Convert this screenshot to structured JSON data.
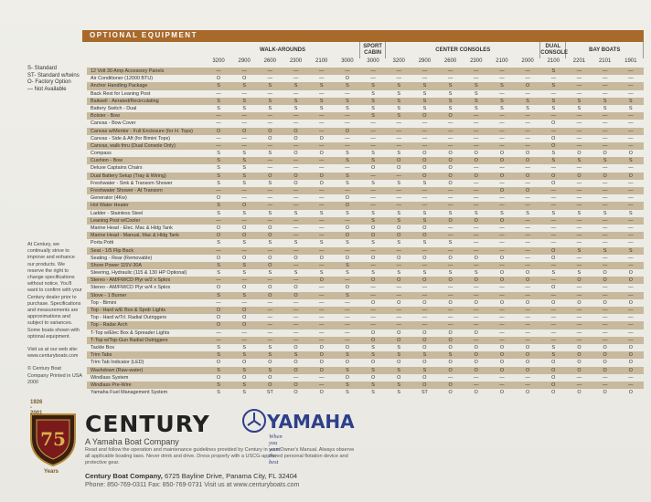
{
  "section_title": "OPTIONAL EQUIPMENT",
  "groups": [
    {
      "label": "WALK-AROUNDS",
      "span": 6
    },
    {
      "label": "SPORT CABIN",
      "span": 1
    },
    {
      "label": "CENTER CONSOLES",
      "span": 6
    },
    {
      "label": "DUAL CONSOLE",
      "span": 1
    },
    {
      "label": "BAY BOATS",
      "span": 3
    }
  ],
  "models": [
    "3200",
    "2900",
    "2600",
    "2300",
    "2100",
    "3000",
    "3000",
    "3200",
    "2900",
    "2600",
    "2300",
    "2100",
    "2000",
    "2100",
    "2201",
    "2101",
    "1901"
  ],
  "legend": [
    "S- Standard",
    "ST- Standard w/twins",
    "O- Factory Option",
    "— Not Available"
  ],
  "rows": [
    {
      "label": "12 Volt 30 Amp Accessory Panels",
      "v": [
        "—",
        "—",
        "—",
        "—",
        "—",
        "—",
        "—",
        "—",
        "—",
        "—",
        "—",
        "—",
        "—",
        "S",
        "—",
        "—",
        "—"
      ]
    },
    {
      "label": "Air Conditioner (12000 BTU)",
      "v": [
        "O",
        "O",
        "—",
        "—",
        "—",
        "O",
        "—",
        "—",
        "—",
        "—",
        "—",
        "—",
        "—",
        "—",
        "—",
        "—",
        "—"
      ]
    },
    {
      "label": "Anchor Handling Package",
      "v": [
        "S",
        "S",
        "S",
        "S",
        "S",
        "S",
        "S",
        "S",
        "S",
        "S",
        "S",
        "S",
        "O",
        "S",
        "—",
        "—",
        "—"
      ]
    },
    {
      "label": "Back Rest for Leaning Post",
      "v": [
        "—",
        "—",
        "—",
        "—",
        "—",
        "—",
        "S",
        "S",
        "S",
        "S",
        "S",
        "—",
        "—",
        "—",
        "—",
        "—",
        "—"
      ]
    },
    {
      "label": "Baitwell - Aerated/Recirculating",
      "v": [
        "S",
        "S",
        "S",
        "S",
        "S",
        "S",
        "S",
        "S",
        "S",
        "S",
        "S",
        "S",
        "S",
        "S",
        "S",
        "S",
        "S"
      ]
    },
    {
      "label": "Battery Switch - Dual",
      "v": [
        "S",
        "S",
        "S",
        "S",
        "S",
        "S",
        "S",
        "S",
        "S",
        "S",
        "S",
        "S",
        "S",
        "S",
        "S",
        "S",
        "S"
      ]
    },
    {
      "label": "Bolster - Bow",
      "v": [
        "—",
        "—",
        "—",
        "—",
        "—",
        "—",
        "S",
        "S",
        "O",
        "O",
        "—",
        "—",
        "—",
        "—",
        "—",
        "—",
        "—"
      ]
    },
    {
      "label": "Canvas - Bow Cover",
      "v": [
        "—",
        "—",
        "—",
        "—",
        "—",
        "—",
        "—",
        "—",
        "—",
        "—",
        "—",
        "—",
        "—",
        "O",
        "—",
        "—",
        "—"
      ]
    },
    {
      "label": "Canvas w/Mentor - Full Enclosure (for H. Tops)",
      "v": [
        "O",
        "O",
        "O",
        "O",
        "—",
        "O",
        "—",
        "—",
        "—",
        "—",
        "—",
        "—",
        "—",
        "—",
        "—",
        "—",
        "—"
      ]
    },
    {
      "label": "Canvas - Side & Aft (for Bimini Tops)",
      "v": [
        "—",
        "—",
        "O",
        "O",
        "O",
        "—",
        "—",
        "—",
        "—",
        "—",
        "—",
        "—",
        "—",
        "O",
        "—",
        "—",
        "—"
      ]
    },
    {
      "label": "Canvas, walk thru (Dual Console Only)",
      "v": [
        "—",
        "—",
        "—",
        "—",
        "—",
        "—",
        "—",
        "—",
        "—",
        "—",
        "—",
        "—",
        "—",
        "O",
        "—",
        "—",
        "—"
      ]
    },
    {
      "label": "Compass",
      "v": [
        "S",
        "S",
        "S",
        "O",
        "O",
        "S",
        "S",
        "S",
        "O",
        "O",
        "O",
        "O",
        "O",
        "S",
        "O",
        "O",
        "O"
      ]
    },
    {
      "label": "Cushion - Bow",
      "v": [
        "S",
        "S",
        "—",
        "—",
        "—",
        "S",
        "S",
        "O",
        "O",
        "O",
        "O",
        "O",
        "O",
        "S",
        "S",
        "S",
        "S"
      ]
    },
    {
      "label": "Deluxe Captains Chairs",
      "v": [
        "S",
        "S",
        "—",
        "—",
        "—",
        "—",
        "O",
        "O",
        "O",
        "O",
        "—",
        "—",
        "—",
        "—",
        "—",
        "—",
        "—"
      ]
    },
    {
      "label": "Dual Battery Setup (Tray & Wiring)",
      "v": [
        "S",
        "S",
        "O",
        "O",
        "O",
        "S",
        "—",
        "—",
        "O",
        "O",
        "O",
        "O",
        "O",
        "O",
        "O",
        "O",
        "O"
      ]
    },
    {
      "label": "Freshwater - Sink & Transom Shower",
      "v": [
        "S",
        "S",
        "S",
        "O",
        "O",
        "S",
        "S",
        "S",
        "S",
        "O",
        "—",
        "—",
        "—",
        "O",
        "—",
        "—",
        "—"
      ]
    },
    {
      "label": "Freshwater Shower - At Transom",
      "v": [
        "—",
        "—",
        "—",
        "—",
        "—",
        "—",
        "—",
        "—",
        "—",
        "—",
        "—",
        "O",
        "O",
        "—",
        "—",
        "—",
        "—"
      ]
    },
    {
      "label": "Generator (4Kw)",
      "v": [
        "O",
        "—",
        "—",
        "—",
        "—",
        "O",
        "—",
        "—",
        "—",
        "—",
        "—",
        "—",
        "—",
        "—",
        "—",
        "—",
        "—"
      ]
    },
    {
      "label": "Hot Water Heater",
      "v": [
        "S",
        "O",
        "—",
        "—",
        "—",
        "O",
        "—",
        "—",
        "—",
        "—",
        "—",
        "—",
        "—",
        "—",
        "—",
        "—",
        "—"
      ]
    },
    {
      "label": "Ladder - Stainless Steel",
      "v": [
        "S",
        "S",
        "S",
        "S",
        "S",
        "S",
        "S",
        "S",
        "S",
        "S",
        "S",
        "S",
        "S",
        "S",
        "S",
        "S",
        "S"
      ]
    },
    {
      "label": "Leaning Post w/Cooler",
      "v": [
        "—",
        "—",
        "—",
        "—",
        "—",
        "—",
        "S",
        "S",
        "S",
        "O",
        "O",
        "O",
        "—",
        "—",
        "—",
        "—",
        "—"
      ]
    },
    {
      "label": "Marine Head - Elec. Mac & Hldg Tank",
      "v": [
        "O",
        "O",
        "O",
        "—",
        "—",
        "O",
        "O",
        "O",
        "O",
        "—",
        "—",
        "—",
        "—",
        "—",
        "—",
        "—",
        "—"
      ]
    },
    {
      "label": "Marine Head - Manual, Mac & Hldg Tank",
      "v": [
        "O",
        "O",
        "O",
        "—",
        "—",
        "O",
        "O",
        "O",
        "O",
        "—",
        "—",
        "—",
        "—",
        "—",
        "—",
        "—",
        "—"
      ]
    },
    {
      "label": "Porta Potti",
      "v": [
        "S",
        "S",
        "S",
        "S",
        "S",
        "S",
        "S",
        "S",
        "S",
        "S",
        "—",
        "—",
        "—",
        "—",
        "—",
        "—",
        "—"
      ]
    },
    {
      "label": "Seat - 1/5 Flip Back",
      "v": [
        "—",
        "—",
        "—",
        "—",
        "—",
        "—",
        "—",
        "—",
        "—",
        "—",
        "—",
        "—",
        "—",
        "O",
        "S",
        "S",
        "S"
      ]
    },
    {
      "label": "Seating - Rear (Removable)",
      "v": [
        "O",
        "O",
        "O",
        "O",
        "O",
        "O",
        "O",
        "O",
        "O",
        "O",
        "O",
        "O",
        "—",
        "O",
        "—",
        "—",
        "—"
      ]
    },
    {
      "label": "Shore Power 115V-30A",
      "v": [
        "S",
        "S",
        "O",
        "—",
        "—",
        "S",
        "—",
        "—",
        "—",
        "—",
        "—",
        "—",
        "—",
        "—",
        "—",
        "—",
        "—"
      ]
    },
    {
      "label": "Steering, Hydraulic (115 & 130 HP Optional)",
      "v": [
        "S",
        "S",
        "S",
        "S",
        "S",
        "S",
        "S",
        "S",
        "S",
        "S",
        "S",
        "O",
        "O",
        "S",
        "S",
        "O",
        "O"
      ]
    },
    {
      "label": "Stereo - AM/FM/CD Plyr w/2 x Spkrs",
      "v": [
        "—",
        "—",
        "—",
        "—",
        "O",
        "—",
        "O",
        "O",
        "O",
        "O",
        "O",
        "O",
        "O",
        "—",
        "O",
        "O",
        "O"
      ]
    },
    {
      "label": "Stereo - AM/FM/CD Plyr w/4 x Spkrs",
      "v": [
        "O",
        "O",
        "O",
        "O",
        "—",
        "O",
        "—",
        "—",
        "—",
        "—",
        "—",
        "—",
        "—",
        "O",
        "—",
        "—",
        "—"
      ]
    },
    {
      "label": "Stove - 1 Burner",
      "v": [
        "S",
        "S",
        "O",
        "O",
        "—",
        "S",
        "—",
        "—",
        "—",
        "—",
        "—",
        "—",
        "—",
        "—",
        "—",
        "—",
        "—"
      ]
    },
    {
      "label": "Top - Bimini",
      "v": [
        "—",
        "—",
        "—",
        "—",
        "—",
        "—",
        "O",
        "O",
        "O",
        "O",
        "O",
        "O",
        "O",
        "O",
        "O",
        "O",
        "O"
      ]
    },
    {
      "label": "Top - Hard w/E Box & Sprdr Lights",
      "v": [
        "O",
        "O",
        "—",
        "—",
        "—",
        "—",
        "—",
        "—",
        "—",
        "—",
        "—",
        "—",
        "—",
        "—",
        "—",
        "—",
        "—"
      ]
    },
    {
      "label": "Top - Hard w/Trl. Radial Outriggers",
      "v": [
        "O",
        "O",
        "—",
        "—",
        "—",
        "—",
        "—",
        "—",
        "—",
        "—",
        "—",
        "—",
        "—",
        "—",
        "—",
        "—",
        "—"
      ]
    },
    {
      "label": "Top - Radar Arch",
      "v": [
        "O",
        "O",
        "—",
        "—",
        "—",
        "—",
        "—",
        "—",
        "—",
        "—",
        "—",
        "—",
        "—",
        "—",
        "—",
        "—",
        "—"
      ]
    },
    {
      "label": "T-Top w/Elec Box & Spreader Lights",
      "v": [
        "—",
        "—",
        "—",
        "—",
        "—",
        "—",
        "O",
        "O",
        "O",
        "O",
        "O",
        "—",
        "—",
        "—",
        "—",
        "—",
        "—"
      ]
    },
    {
      "label": "T-Top w/Top-Gun Radial Outriggers",
      "v": [
        "—",
        "—",
        "—",
        "—",
        "—",
        "—",
        "O",
        "O",
        "O",
        "O",
        "—",
        "—",
        "—",
        "—",
        "—",
        "—",
        "—"
      ]
    },
    {
      "label": "Tackle Box",
      "v": [
        "S",
        "S",
        "S",
        "O",
        "O",
        "O",
        "S",
        "S",
        "O",
        "O",
        "O",
        "O",
        "O",
        "S",
        "O",
        "O",
        "O"
      ]
    },
    {
      "label": "Trim Tabs",
      "v": [
        "S",
        "S",
        "S",
        "S",
        "O",
        "S",
        "S",
        "S",
        "S",
        "S",
        "O",
        "O",
        "O",
        "S",
        "O",
        "O",
        "O"
      ]
    },
    {
      "label": "Trim Tab Indicator (LED)",
      "v": [
        "O",
        "O",
        "O",
        "O",
        "O",
        "O",
        "O",
        "O",
        "O",
        "O",
        "O",
        "O",
        "O",
        "O",
        "O",
        "O",
        "O"
      ]
    },
    {
      "label": "Washdown (Raw-water)",
      "v": [
        "S",
        "S",
        "S",
        "O",
        "O",
        "S",
        "S",
        "S",
        "S",
        "O",
        "O",
        "O",
        "O",
        "O",
        "O",
        "O",
        "O"
      ]
    },
    {
      "label": "Windlass System",
      "v": [
        "O",
        "O",
        "O",
        "—",
        "—",
        "O",
        "O",
        "O",
        "O",
        "—",
        "—",
        "—",
        "—",
        "O",
        "—",
        "—",
        "—"
      ]
    },
    {
      "label": "Windlass Pre-Wire",
      "v": [
        "S",
        "S",
        "O",
        "O",
        "—",
        "S",
        "S",
        "S",
        "O",
        "O",
        "—",
        "—",
        "—",
        "O",
        "—",
        "—",
        "—"
      ]
    },
    {
      "label": "Yamaha Fuel Management System",
      "v": [
        "S",
        "S",
        "ST",
        "O",
        "O",
        "S",
        "S",
        "S",
        "ST",
        "O",
        "O",
        "O",
        "O",
        "O",
        "O",
        "O",
        "O"
      ]
    }
  ],
  "sidenote": [
    "At Century, we continually strive to improve and enhance our products. We reserve the right to change specifications without notice. You'll want to confirm with your Century dealer prior to purchase. Specifications and measurements are approximations and subject to variances. Some boats shown with optional equipment.",
    "Visit us at our web site: www.centuryboats.com",
    "© Century Boat Company Printed in USA 2000"
  ],
  "brand": {
    "century": "CENTURY",
    "century_sub": "A Yamaha Boat Company",
    "yamaha": "YAMAHA",
    "yamaha_tag": "When you want the best",
    "shield_years_top": "1926 - 2001",
    "shield_years_bottom": "Years",
    "shield_number": "75"
  },
  "safety_text": "Read and follow the operation and maintenance guidelines provided by Century in your Owner's Manual. Always observe all applicable boating laws. Never drink and drive. Dress properly with a USCG-approved personal flotation device and protective gear.",
  "address": {
    "company": "Century Boat Company,",
    "street": "6725 Bayline Drive, Panama City, FL 32404",
    "phone": "Phone: 850-769-0311  Fax: 850-769-0731  Visit us at www.centuryboats.com"
  },
  "colors": {
    "accent": "#a86a2a",
    "stripe": "#c8b99c",
    "yamaha_blue": "#2e3f8a"
  }
}
